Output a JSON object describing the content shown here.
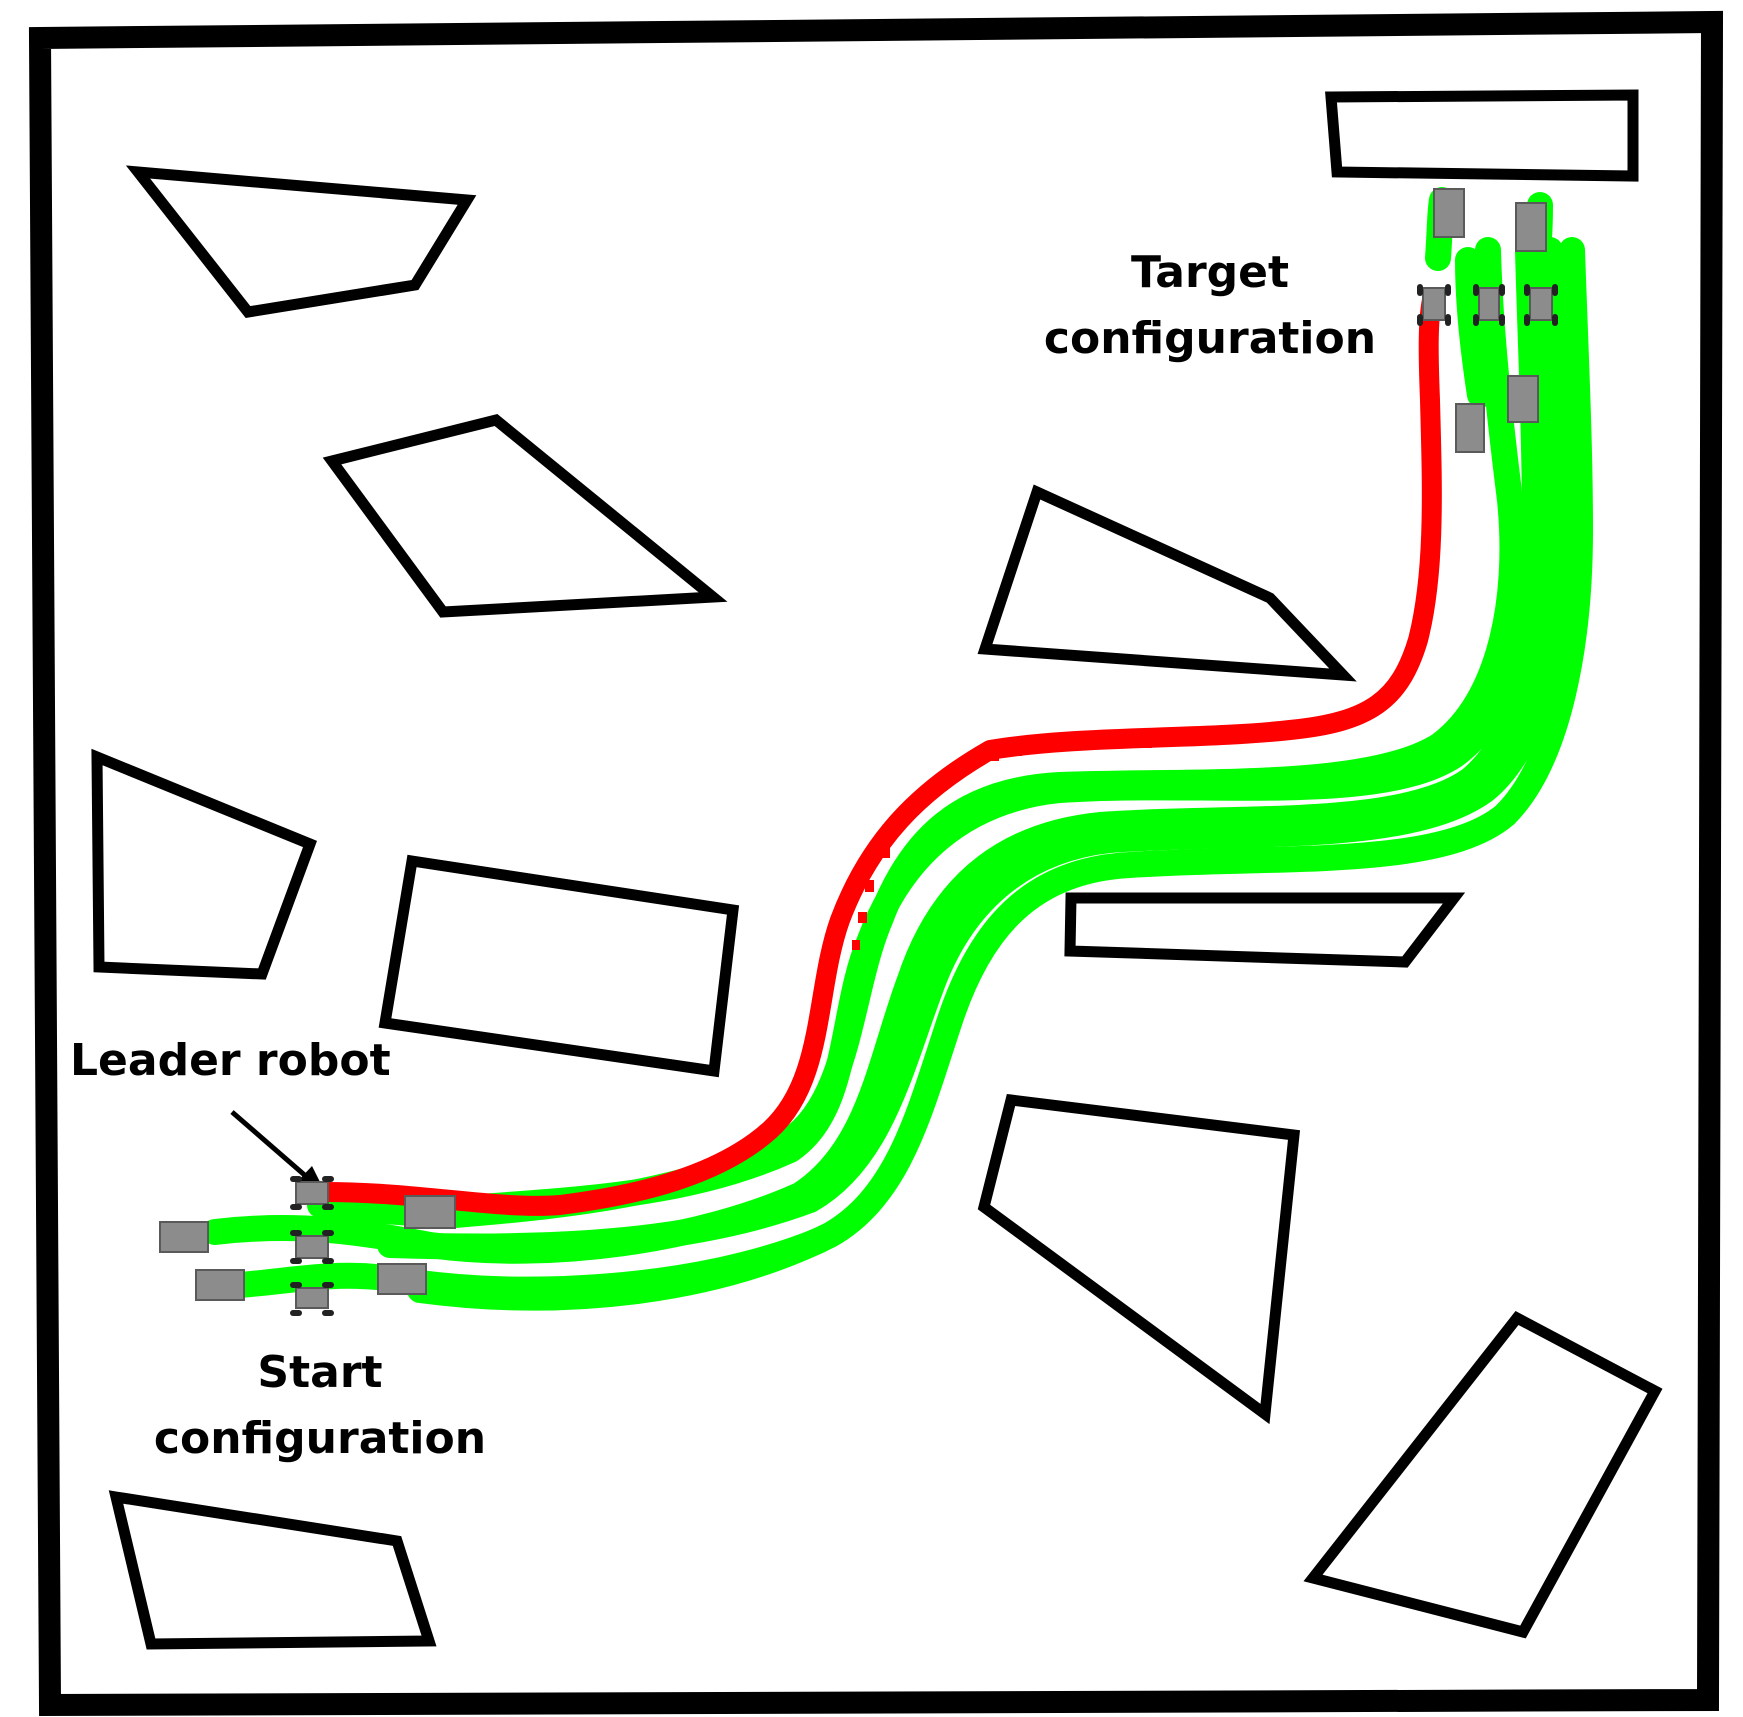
{
  "labels": {
    "target": [
      "Target",
      "configuration"
    ],
    "start": [
      "Start",
      "configuration"
    ],
    "leader": "Leader robot"
  },
  "colors": {
    "obstacle": "#000000",
    "leader_path": "#ff0000",
    "follower_path": "#00ff00",
    "robot_body": "#8c8c8c",
    "robot_outline": "#5a5a5a",
    "wheel": "#222222"
  },
  "icons": {
    "robot": "robot-icon",
    "arrow": "arrow-icon"
  }
}
